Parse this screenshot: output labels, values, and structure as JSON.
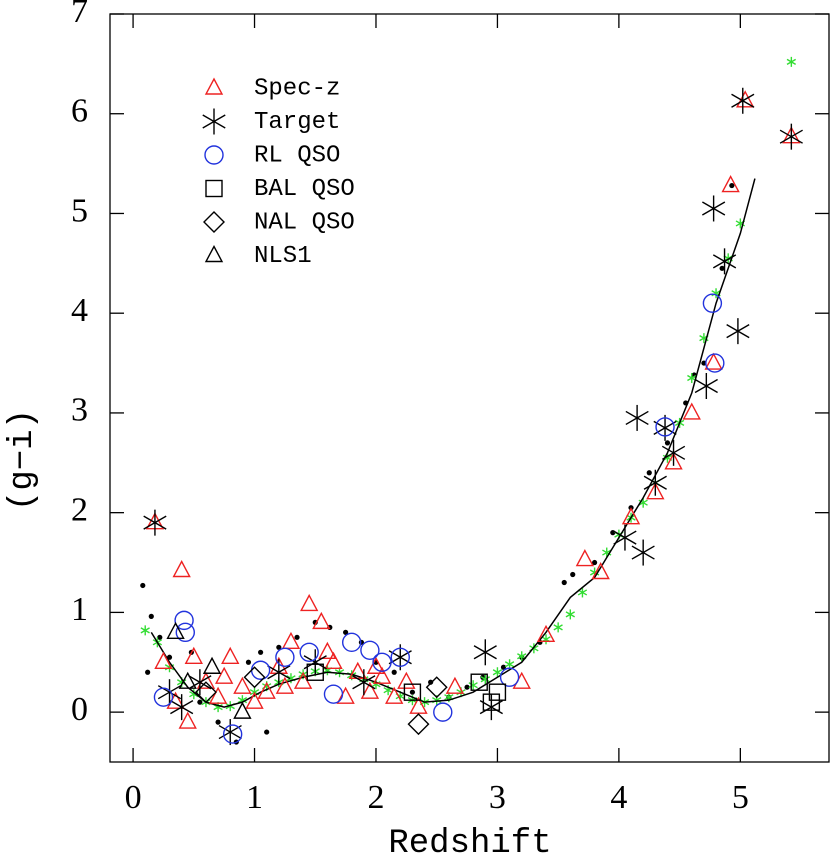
{
  "chart_data": {
    "type": "scatter",
    "xlabel": "Redshift",
    "ylabel": "(g−i)",
    "xlim": [
      -0.19,
      5.73
    ],
    "ylim": [
      -0.5,
      7
    ],
    "xticks": [
      0,
      1,
      2,
      3,
      4,
      5
    ],
    "yticks": [
      0,
      1,
      2,
      3,
      4,
      5,
      6,
      7
    ],
    "series": [
      {
        "color": "#000000",
        "marker": "dot",
        "x": [
          0.08,
          0.15,
          0.22,
          0.3,
          0.48,
          0.55,
          0.7,
          0.85,
          0.95,
          1.05,
          1.2,
          1.35,
          1.5,
          1.62,
          1.75,
          1.88,
          2.0,
          2.15,
          2.3,
          2.45,
          2.6,
          2.75,
          2.88,
          3.05,
          3.2,
          3.35,
          3.55,
          3.62,
          3.8,
          3.95,
          4.1,
          4.25,
          4.4,
          4.55,
          4.62,
          4.7,
          4.85,
          4.93,
          0.12,
          1.1
        ],
        "values": [
          1.27,
          0.96,
          0.75,
          0.55,
          0.6,
          0.1,
          -0.1,
          -0.3,
          0.5,
          0.6,
          0.65,
          0.75,
          0.9,
          0.85,
          0.8,
          0.7,
          0.5,
          0.4,
          0.2,
          0.3,
          0.15,
          0.25,
          0.35,
          0.45,
          0.55,
          0.7,
          1.3,
          1.38,
          1.5,
          1.8,
          2.05,
          2.4,
          2.7,
          3.1,
          3.38,
          3.5,
          4.45,
          5.28,
          0.4,
          -0.2
        ]
      },
      {
        "color": "#33dd33",
        "marker": "star",
        "x": [
          0.1,
          0.2,
          0.3,
          0.4,
          0.5,
          0.6,
          0.7,
          0.8,
          0.9,
          1.0,
          1.1,
          1.2,
          1.3,
          1.4,
          1.5,
          1.6,
          1.7,
          1.8,
          1.9,
          2.0,
          2.1,
          2.2,
          2.3,
          2.4,
          2.5,
          2.6,
          2.7,
          2.8,
          2.9,
          3.0,
          3.1,
          3.2,
          3.3,
          3.4,
          3.5,
          3.6,
          3.7,
          3.8,
          3.9,
          4.0,
          4.1,
          4.2,
          4.3,
          4.4,
          4.5,
          4.6,
          4.7,
          4.8,
          4.9,
          5.0,
          5.42
        ],
        "values": [
          0.82,
          0.7,
          0.45,
          0.3,
          0.18,
          0.1,
          0.05,
          0.06,
          0.12,
          0.2,
          0.26,
          0.3,
          0.34,
          0.38,
          0.41,
          0.42,
          0.4,
          0.37,
          0.33,
          0.28,
          0.22,
          0.16,
          0.12,
          0.1,
          0.12,
          0.15,
          0.2,
          0.27,
          0.33,
          0.4,
          0.48,
          0.56,
          0.64,
          0.73,
          0.85,
          0.98,
          1.2,
          1.4,
          1.6,
          1.78,
          1.95,
          2.1,
          2.3,
          2.55,
          2.9,
          3.35,
          3.75,
          4.2,
          4.55,
          4.9,
          6.52
        ]
      },
      {
        "color": "#000000",
        "marker": "line",
        "x": [
          0.15,
          0.3,
          0.45,
          0.6,
          0.75,
          0.9,
          1.05,
          1.2,
          1.4,
          1.6,
          1.8,
          2.0,
          2.2,
          2.4,
          2.6,
          2.8,
          3.0,
          3.2,
          3.4,
          3.6,
          3.8,
          4.0,
          4.2,
          4.4,
          4.6,
          4.8,
          5.0,
          5.12
        ],
        "values": [
          0.8,
          0.5,
          0.25,
          0.1,
          0.05,
          0.1,
          0.2,
          0.28,
          0.35,
          0.4,
          0.38,
          0.3,
          0.2,
          0.1,
          0.12,
          0.2,
          0.35,
          0.5,
          0.8,
          1.15,
          1.35,
          1.75,
          2.15,
          2.6,
          3.2,
          4.1,
          4.8,
          5.35
        ]
      },
      {
        "name": "Spec-z",
        "color": "#ee2222",
        "marker": "triangle",
        "x": [
          0.18,
          0.4,
          0.25,
          0.35,
          0.5,
          0.6,
          0.7,
          0.8,
          0.9,
          1.0,
          1.1,
          1.2,
          1.3,
          1.4,
          1.45,
          1.55,
          1.65,
          1.75,
          1.85,
          1.95,
          2.05,
          2.15,
          2.25,
          2.35,
          0.45,
          0.75,
          1.25,
          1.6,
          2.0,
          3.2,
          3.4,
          3.72,
          3.85,
          4.1,
          4.3,
          4.45,
          4.6,
          4.78,
          4.92,
          5.04,
          5.42,
          2.65
        ],
        "values": [
          1.9,
          1.42,
          0.5,
          0.1,
          0.55,
          0.3,
          0.15,
          0.55,
          0.25,
          0.1,
          0.2,
          0.45,
          0.7,
          0.3,
          1.08,
          0.9,
          0.5,
          0.15,
          0.4,
          0.2,
          0.35,
          0.15,
          0.3,
          0.05,
          -0.1,
          0.35,
          0.25,
          0.6,
          0.45,
          0.3,
          0.77,
          1.53,
          1.4,
          1.95,
          2.2,
          2.5,
          3.0,
          3.5,
          5.28,
          6.13,
          5.77,
          0.25
        ]
      },
      {
        "name": "Target",
        "color": "#000000",
        "marker": "star",
        "x": [
          0.18,
          5.02,
          5.42,
          4.78,
          4.87,
          4.98,
          4.72,
          4.15,
          4.38,
          4.45,
          4.3,
          4.2,
          4.05,
          2.9,
          2.95,
          0.4,
          0.8,
          1.5,
          1.9,
          2.2,
          0.3,
          0.55,
          1.2
        ],
        "values": [
          1.9,
          6.13,
          5.77,
          5.05,
          4.52,
          3.82,
          3.27,
          2.95,
          2.85,
          2.6,
          2.3,
          1.6,
          1.75,
          0.6,
          0.05,
          0.05,
          -0.2,
          0.5,
          0.3,
          0.55,
          0.2,
          0.3,
          0.4
        ]
      },
      {
        "name": "RL QSO",
        "color": "#2233dd",
        "marker": "circle",
        "x": [
          0.42,
          0.25,
          0.82,
          1.05,
          1.25,
          1.45,
          1.65,
          1.8,
          1.95,
          2.05,
          2.2,
          2.55,
          4.38,
          4.77,
          4.79,
          3.1,
          0.43
        ],
        "values": [
          0.92,
          0.15,
          -0.22,
          0.42,
          0.55,
          0.6,
          0.18,
          0.7,
          0.62,
          0.5,
          0.55,
          0.0,
          2.86,
          4.1,
          3.5,
          0.35,
          0.8
        ]
      },
      {
        "name": "BAL QSO",
        "color": "#000000",
        "marker": "square",
        "x": [
          2.95,
          2.85,
          2.3,
          1.5,
          3.0
        ],
        "values": [
          0.1,
          0.3,
          0.2,
          0.4,
          0.2
        ]
      },
      {
        "name": "NAL QSO",
        "color": "#000000",
        "marker": "diamond",
        "x": [
          2.35,
          2.5,
          1.0,
          0.6
        ],
        "values": [
          -0.12,
          0.25,
          0.35,
          0.2
        ]
      },
      {
        "name": "NLS1",
        "color": "#000000",
        "marker": "triangle",
        "x": [
          0.45,
          0.65,
          0.35,
          0.9
        ],
        "values": [
          0.3,
          0.45,
          0.8,
          0.0
        ]
      }
    ]
  }
}
